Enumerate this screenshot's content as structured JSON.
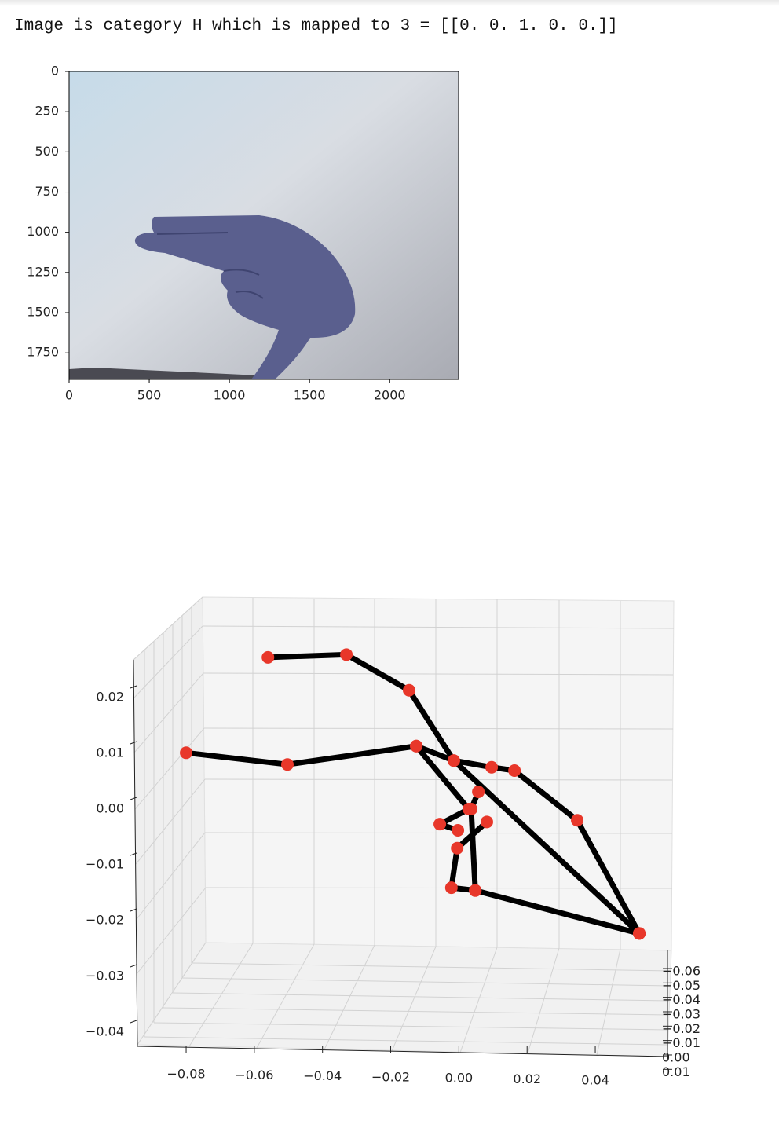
{
  "output_text": "Image is category H which is mapped to 3 = [[0. 0. 1. 0. 0.]]",
  "chart_data": [
    {
      "type": "image",
      "xlim": [
        0,
        2430
      ],
      "ylim": [
        1915,
        0
      ],
      "xticks": [
        0,
        500,
        1000,
        1500,
        2000
      ],
      "yticks": [
        0,
        250,
        500,
        750,
        1000,
        1250,
        1500,
        1750
      ]
    },
    {
      "type": "line3d",
      "xlim": [
        -0.1,
        0.07
      ],
      "ylim": [
        -0.045,
        0.03
      ],
      "zlim": [
        -0.06,
        0.01
      ],
      "xticks": [
        {
          "value": -0.08,
          "label": "−0.08"
        },
        {
          "value": -0.06,
          "label": "−0.06"
        },
        {
          "value": -0.04,
          "label": "−0.04"
        },
        {
          "value": -0.02,
          "label": "−0.02"
        },
        {
          "value": 0,
          "label": "0.00"
        },
        {
          "value": 0.02,
          "label": "0.02"
        },
        {
          "value": 0.04,
          "label": "0.04"
        }
      ],
      "yticks": [
        {
          "value": 0.02,
          "label": "0.02"
        },
        {
          "value": 0.01,
          "label": "0.01"
        },
        {
          "value": 0,
          "label": "0.00"
        },
        {
          "value": -0.01,
          "label": "−0.01"
        },
        {
          "value": -0.02,
          "label": "−0.02"
        },
        {
          "value": -0.03,
          "label": "−0.03"
        },
        {
          "value": -0.04,
          "label": "−0.04"
        }
      ],
      "zticks": [
        {
          "value": -0.06,
          "label": "−0.06"
        },
        {
          "value": -0.05,
          "label": "−0.05"
        },
        {
          "value": -0.04,
          "label": "−0.04"
        },
        {
          "value": -0.03,
          "label": "−0.03"
        },
        {
          "value": -0.02,
          "label": "−0.02"
        },
        {
          "value": -0.01,
          "label": "−0.01"
        },
        {
          "value": 0,
          "label": "0.00"
        },
        {
          "value": 0.01,
          "label": "0.01"
        }
      ],
      "line_color": "#000000",
      "marker_color": "#e8372a",
      "series": [
        {
          "x": [
            0.0529,
            0.0347,
            0.0163,
            0.0096,
            -0.0015,
            -0.0125,
            -0.0503,
            -0.08
          ],
          "values": [
            -0.0223,
            -0.002,
            0.0069,
            0.0075,
            0.0087,
            0.0113,
            0.008,
            0.0101
          ]
        },
        {
          "x": [
            0.0529,
            -0.0015,
            -0.0146,
            -0.033,
            -0.056
          ],
          "values": [
            -0.0223,
            0.0087,
            0.0213,
            0.0277,
            0.0272
          ]
        },
        {
          "x": [
            0.0529,
            0.0048,
            -0.0022,
            -0.0005,
            0.0082
          ],
          "values": [
            -0.0223,
            -0.0146,
            -0.0141,
            -0.007,
            -0.0023
          ]
        },
        {
          "x": [
            0.0048,
            0.0036,
            0.0057
          ],
          "values": [
            -0.0146,
            0.0,
            0.0031
          ]
        },
        {
          "x": [
            -0.0125,
            0.0029,
            -0.0056,
            -0.0003
          ],
          "values": [
            0.0113,
            0.0,
            -0.0027,
            -0.0038
          ]
        }
      ]
    }
  ]
}
